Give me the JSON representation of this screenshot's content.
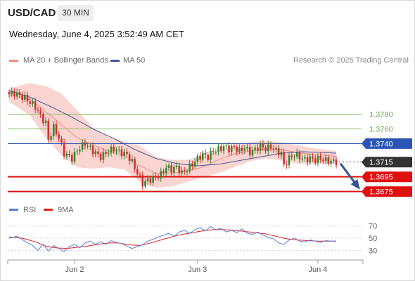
{
  "header": {
    "symbol": "USD/CAD",
    "timeframe": "30 MIN",
    "datetime": "Wednesday, June 4, 2025 3:52:49 AM CET"
  },
  "legend": {
    "ma20_label": "MA 20 + Bollinger Bands",
    "ma50_label": "MA 50",
    "credit": "Research © 2025 Trading Central"
  },
  "rsi_legend": {
    "rsi_label": "RSI",
    "ma9_label": "9MA"
  },
  "colors": {
    "candle_up": "#2e8b2e",
    "candle_down": "#d32f2f",
    "ma20": "#f28b82",
    "bollinger_fill": "#f8c6c2",
    "ma50": "#3d5a99",
    "target_line": "#7fbf5a",
    "pivot_line": "#2a55b5",
    "support_line": "#e01010",
    "current_tag": "#333333",
    "arrow": "#2f5597",
    "rsi": "#5b7fd6",
    "rsi_ma": "#e02020"
  },
  "chart_data": [
    {
      "type": "candlestick",
      "title": "USD/CAD",
      "y_range": [
        1.3668,
        1.383
      ],
      "x_tick_labels": [
        "Jun 2",
        "Jun 3",
        "Jun 4"
      ],
      "levels": [
        {
          "label": "1.3780",
          "value": 1.378,
          "kind": "target"
        },
        {
          "label": "1.3760",
          "value": 1.376,
          "kind": "target"
        },
        {
          "label": "1.3740",
          "value": 1.374,
          "kind": "pivot"
        },
        {
          "label": "1.3715",
          "value": 1.3715,
          "kind": "current"
        },
        {
          "label": "1.3695",
          "value": 1.3695,
          "kind": "support"
        },
        {
          "label": "1.3675",
          "value": 1.3675,
          "kind": "support"
        }
      ],
      "series": [
        {
          "name": "Price",
          "anchors": [
            [
              0,
              1.3807
            ],
            [
              2,
              1.3809
            ],
            [
              4,
              1.3805
            ],
            [
              6,
              1.3802
            ],
            [
              8,
              1.3796
            ],
            [
              10,
              1.379
            ],
            [
              12,
              1.3777
            ],
            [
              14,
              1.3768
            ],
            [
              15,
              1.3745
            ],
            [
              17,
              1.3762
            ],
            [
              19,
              1.3748
            ],
            [
              21,
              1.3727
            ],
            [
              24,
              1.372
            ],
            [
              27,
              1.3735
            ],
            [
              29,
              1.374
            ],
            [
              32,
              1.373
            ],
            [
              35,
              1.3722
            ],
            [
              38,
              1.373
            ],
            [
              40,
              1.3733
            ],
            [
              42,
              1.3729
            ],
            [
              45,
              1.3725
            ],
            [
              47,
              1.3715
            ],
            [
              49,
              1.37
            ],
            [
              51,
              1.3686
            ],
            [
              53,
              1.369
            ],
            [
              55,
              1.3693
            ],
            [
              58,
              1.3698
            ],
            [
              60,
              1.3708
            ],
            [
              62,
              1.3705
            ],
            [
              64,
              1.3708
            ],
            [
              66,
              1.37
            ],
            [
              68,
              1.3705
            ],
            [
              70,
              1.3712
            ],
            [
              72,
              1.372
            ],
            [
              74,
              1.3725
            ],
            [
              76,
              1.3722
            ],
            [
              78,
              1.373
            ],
            [
              80,
              1.3732
            ],
            [
              82,
              1.3736
            ],
            [
              84,
              1.3733
            ],
            [
              86,
              1.3735
            ],
            [
              88,
              1.373
            ],
            [
              90,
              1.3735
            ],
            [
              92,
              1.3728
            ],
            [
              94,
              1.3732
            ],
            [
              96,
              1.3737
            ],
            [
              98,
              1.3733
            ],
            [
              100,
              1.3736
            ],
            [
              102,
              1.373
            ],
            [
              104,
              1.3727
            ],
            [
              105,
              1.371
            ],
            [
              107,
              1.372
            ],
            [
              109,
              1.3725
            ],
            [
              111,
              1.3722
            ],
            [
              113,
              1.3718
            ],
            [
              115,
              1.372
            ],
            [
              117,
              1.3718
            ],
            [
              119,
              1.372
            ],
            [
              121,
              1.3717
            ],
            [
              123,
              1.3716
            ],
            [
              125,
              1.3715
            ]
          ]
        },
        {
          "name": "MA 20",
          "anchors": [
            [
              0,
              1.3806
            ],
            [
              8,
              1.38
            ],
            [
              14,
              1.3783
            ],
            [
              20,
              1.3766
            ],
            [
              26,
              1.3748
            ],
            [
              32,
              1.3738
            ],
            [
              38,
              1.373
            ],
            [
              44,
              1.3724
            ],
            [
              50,
              1.371
            ],
            [
              56,
              1.37
            ],
            [
              62,
              1.37
            ],
            [
              68,
              1.3703
            ],
            [
              74,
              1.3708
            ],
            [
              80,
              1.3718
            ],
            [
              86,
              1.3726
            ],
            [
              92,
              1.373
            ],
            [
              98,
              1.3733
            ],
            [
              104,
              1.3732
            ],
            [
              110,
              1.3728
            ],
            [
              116,
              1.3725
            ],
            [
              125,
              1.3723
            ]
          ]
        },
        {
          "name": "MA 50",
          "anchors": [
            [
              0,
              1.3812
            ],
            [
              8,
              1.3803
            ],
            [
              16,
              1.379
            ],
            [
              24,
              1.3776
            ],
            [
              32,
              1.376
            ],
            [
              40,
              1.3747
            ],
            [
              48,
              1.3732
            ],
            [
              56,
              1.372
            ],
            [
              64,
              1.3713
            ],
            [
              72,
              1.371
            ],
            [
              80,
              1.3712
            ],
            [
              88,
              1.3717
            ],
            [
              96,
              1.3722
            ],
            [
              104,
              1.3727
            ],
            [
              112,
              1.3729
            ],
            [
              120,
              1.3728
            ],
            [
              125,
              1.3727
            ]
          ]
        },
        {
          "name": "Bollinger upper",
          "anchors": [
            [
              0,
              1.3815
            ],
            [
              8,
              1.3822
            ],
            [
              14,
              1.3818
            ],
            [
              20,
              1.3808
            ],
            [
              26,
              1.3785
            ],
            [
              32,
              1.3762
            ],
            [
              38,
              1.3749
            ],
            [
              44,
              1.3743
            ],
            [
              50,
              1.3737
            ],
            [
              56,
              1.3722
            ],
            [
              62,
              1.3718
            ],
            [
              68,
              1.3718
            ],
            [
              74,
              1.3722
            ],
            [
              80,
              1.373
            ],
            [
              86,
              1.3737
            ],
            [
              92,
              1.3742
            ],
            [
              98,
              1.3744
            ],
            [
              104,
              1.3742
            ],
            [
              110,
              1.3738
            ],
            [
              116,
              1.3734
            ],
            [
              125,
              1.373
            ]
          ]
        },
        {
          "name": "Bollinger lower",
          "anchors": [
            [
              0,
              1.3797
            ],
            [
              8,
              1.3778
            ],
            [
              14,
              1.3748
            ],
            [
              20,
              1.3724
            ],
            [
              26,
              1.3708
            ],
            [
              32,
              1.3706
            ],
            [
              38,
              1.3708
            ],
            [
              44,
              1.3705
            ],
            [
              50,
              1.3688
            ],
            [
              56,
              1.368
            ],
            [
              62,
              1.3682
            ],
            [
              68,
              1.3688
            ],
            [
              74,
              1.3694
            ],
            [
              80,
              1.37
            ],
            [
              86,
              1.3708
            ],
            [
              92,
              1.3716
            ],
            [
              98,
              1.372
            ],
            [
              104,
              1.3717
            ],
            [
              110,
              1.3713
            ],
            [
              116,
              1.3712
            ],
            [
              125,
              1.3714
            ]
          ]
        }
      ]
    },
    {
      "type": "line",
      "title": "RSI",
      "y_range": [
        20,
        80
      ],
      "y_tick_labels": [
        "70",
        "50",
        "30"
      ],
      "series": [
        {
          "name": "RSI",
          "anchors": [
            [
              0,
              50
            ],
            [
              3,
              53
            ],
            [
              6,
              45
            ],
            [
              9,
              38
            ],
            [
              11,
              30
            ],
            [
              13,
              40
            ],
            [
              15,
              29
            ],
            [
              17,
              38
            ],
            [
              19,
              33
            ],
            [
              21,
              28
            ],
            [
              23,
              36
            ],
            [
              25,
              40
            ],
            [
              27,
              34
            ],
            [
              29,
              42
            ],
            [
              31,
              45
            ],
            [
              33,
              40
            ],
            [
              35,
              44
            ],
            [
              37,
              40
            ],
            [
              39,
              46
            ],
            [
              41,
              43
            ],
            [
              43,
              41
            ],
            [
              45,
              37
            ],
            [
              47,
              33
            ],
            [
              49,
              36
            ],
            [
              51,
              39
            ],
            [
              53,
              45
            ],
            [
              55,
              48
            ],
            [
              57,
              52
            ],
            [
              59,
              55
            ],
            [
              61,
              58
            ],
            [
              63,
              53
            ],
            [
              65,
              60
            ],
            [
              67,
              63
            ],
            [
              69,
              58
            ],
            [
              71,
              64
            ],
            [
              73,
              67
            ],
            [
              75,
              62
            ],
            [
              77,
              69
            ],
            [
              79,
              64
            ],
            [
              81,
              66
            ],
            [
              83,
              60
            ],
            [
              85,
              63
            ],
            [
              87,
              59
            ],
            [
              89,
              65
            ],
            [
              91,
              58
            ],
            [
              93,
              56
            ],
            [
              95,
              60
            ],
            [
              97,
              55
            ],
            [
              99,
              51
            ],
            [
              101,
              49
            ],
            [
              103,
              42
            ],
            [
              105,
              40
            ],
            [
              107,
              47
            ],
            [
              109,
              50
            ],
            [
              111,
              45
            ],
            [
              113,
              44
            ],
            [
              115,
              47
            ],
            [
              117,
              45
            ],
            [
              119,
              43
            ],
            [
              121,
              46
            ],
            [
              123,
              45
            ],
            [
              125,
              45
            ]
          ]
        },
        {
          "name": "9MA",
          "anchors": [
            [
              0,
              52
            ],
            [
              5,
              50
            ],
            [
              10,
              44
            ],
            [
              14,
              37
            ],
            [
              18,
              34
            ],
            [
              22,
              33
            ],
            [
              26,
              35
            ],
            [
              30,
              37
            ],
            [
              34,
              40
            ],
            [
              38,
              42
            ],
            [
              42,
              42
            ],
            [
              46,
              39
            ],
            [
              50,
              38
            ],
            [
              54,
              42
            ],
            [
              58,
              47
            ],
            [
              62,
              52
            ],
            [
              66,
              56
            ],
            [
              70,
              59
            ],
            [
              74,
              62
            ],
            [
              78,
              64
            ],
            [
              82,
              64
            ],
            [
              86,
              63
            ],
            [
              90,
              61
            ],
            [
              94,
              59
            ],
            [
              98,
              57
            ],
            [
              102,
              53
            ],
            [
              106,
              49
            ],
            [
              110,
              47
            ],
            [
              114,
              46
            ],
            [
              118,
              45
            ],
            [
              125,
              45
            ]
          ]
        }
      ]
    }
  ]
}
